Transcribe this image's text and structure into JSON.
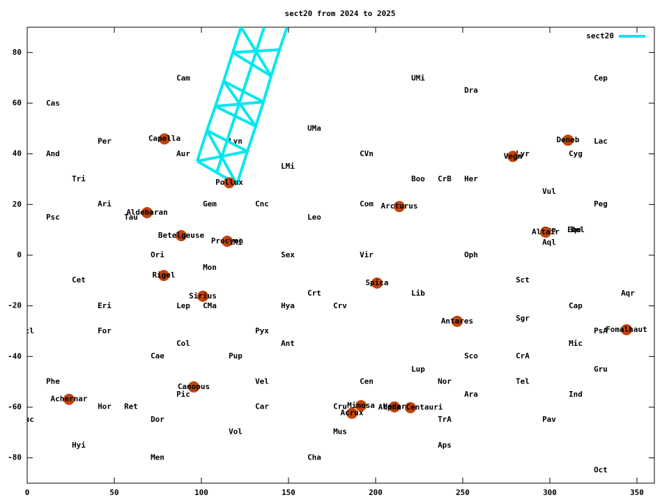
{
  "chart_data": {
    "type": "line",
    "title": "sect20 from 2024 to 2025",
    "xlim": [
      0,
      360
    ],
    "ylim": [
      -90,
      90
    ],
    "xticks": [
      0,
      50,
      100,
      150,
      200,
      250,
      300,
      350
    ],
    "yticks": [
      -80,
      -60,
      -40,
      -20,
      0,
      20,
      40,
      60,
      80
    ],
    "legend": "top-right",
    "series": [
      {
        "name": "sect20",
        "color": "#00e8ee",
        "x": [
          97.6,
          103.2,
          108,
          112.8,
          118,
          122.8,
          null,
          120.4,
          126.4,
          131.2,
          135.6,
          140,
          144.8,
          149.2,
          null,
          108.8,
          136,
          null,
          97.6,
          120.4,
          null,
          103.2,
          126.4,
          null,
          108,
          131.2,
          null,
          112.8,
          135.6,
          null,
          118,
          140,
          null,
          97.6,
          126.4,
          null,
          120.4,
          103.2,
          null,
          108,
          135.6,
          null,
          131.2,
          112.8,
          null,
          118,
          144.8,
          null,
          140,
          122.8
        ],
        "values": [
          37.1,
          49.2,
          58.8,
          68.7,
          80,
          90,
          null,
          28,
          41,
          50.9,
          60.5,
          70.7,
          81.1,
          90,
          null,
          32.7,
          90,
          null,
          37.1,
          28,
          null,
          49.2,
          41,
          null,
          58.8,
          50.9,
          null,
          68.7,
          60.5,
          null,
          80,
          70.7,
          null,
          37.1,
          41,
          null,
          28,
          49.2,
          null,
          58.8,
          60.5,
          null,
          50.9,
          68.7,
          null,
          80,
          81.1,
          null,
          70.7,
          90
        ]
      }
    ],
    "star_color": "#c0440e",
    "stars": [
      {
        "name": "Capella",
        "x": 78.8,
        "y": 45.9
      },
      {
        "name": "Aldebaran",
        "x": 68.8,
        "y": 16.8
      },
      {
        "name": "Betelgeuse",
        "x": 88.4,
        "y": 7.7
      },
      {
        "name": "Rigel",
        "x": 78.4,
        "y": -8.0
      },
      {
        "name": "Sirius",
        "x": 100.8,
        "y": -16.2
      },
      {
        "name": "Procyon",
        "x": 114.8,
        "y": 5.5
      },
      {
        "name": "Pollux",
        "x": 116,
        "y": 28.6
      },
      {
        "name": "Canopus",
        "x": 95.6,
        "y": -52.0
      },
      {
        "name": "Achernar",
        "x": 24,
        "y": -56.9
      },
      {
        "name": "Mimosa",
        "x": 191.6,
        "y": -59.4
      },
      {
        "name": "Acrux",
        "x": 186.4,
        "y": -62.4
      },
      {
        "name": "Hadar",
        "x": 210.8,
        "y": -59.9
      },
      {
        "name": "Alpha Centauri",
        "x": 220,
        "y": -60.2
      },
      {
        "name": "Spica",
        "x": 200.8,
        "y": -11.0
      },
      {
        "name": "Arcturus",
        "x": 213.6,
        "y": 19.2
      },
      {
        "name": "Antares",
        "x": 246.8,
        "y": -26.1
      },
      {
        "name": "Vega",
        "x": 278.8,
        "y": 39.0
      },
      {
        "name": "Deneb",
        "x": 310.4,
        "y": 45.4
      },
      {
        "name": "Altair",
        "x": 297.6,
        "y": 9.1
      },
      {
        "name": "Fomalhaut",
        "x": 344,
        "y": -29.4
      }
    ],
    "constellations": [
      {
        "name": "Cam",
        "x": 89.6,
        "y": 69.8
      },
      {
        "name": "UMi",
        "x": 224.4,
        "y": 69.8
      },
      {
        "name": "Cep",
        "x": 329.2,
        "y": 69.8
      },
      {
        "name": "Dra",
        "x": 254.8,
        "y": 64.9
      },
      {
        "name": "Cas",
        "x": 14.8,
        "y": 59.9
      },
      {
        "name": "UMa",
        "x": 164.8,
        "y": 50.0
      },
      {
        "name": "Per",
        "x": 44.4,
        "y": 44.8
      },
      {
        "name": "Lac",
        "x": 329.2,
        "y": 44.8
      },
      {
        "name": "Lyn",
        "x": 119.6,
        "y": 44.8
      },
      {
        "name": "And",
        "x": 14.8,
        "y": 39.9
      },
      {
        "name": "Aur",
        "x": 89.6,
        "y": 39.9
      },
      {
        "name": "CVn",
        "x": 194.8,
        "y": 39.9
      },
      {
        "name": "Lyr",
        "x": 284.4,
        "y": 39.9
      },
      {
        "name": "Cyg",
        "x": 314.8,
        "y": 39.9
      },
      {
        "name": "LMi",
        "x": 149.6,
        "y": 34.9
      },
      {
        "name": "Tri",
        "x": 29.6,
        "y": 30.0
      },
      {
        "name": "Boo",
        "x": 224.4,
        "y": 30.0
      },
      {
        "name": "CrB",
        "x": 239.6,
        "y": 30.0
      },
      {
        "name": "Her",
        "x": 254.8,
        "y": 30.0
      },
      {
        "name": "Vul",
        "x": 299.6,
        "y": 25.0
      },
      {
        "name": "Ari",
        "x": 44.4,
        "y": 20.1
      },
      {
        "name": "Gem",
        "x": 104.8,
        "y": 20.1
      },
      {
        "name": "Cnc",
        "x": 134.8,
        "y": 20.1
      },
      {
        "name": "Com",
        "x": 194.8,
        "y": 20.1
      },
      {
        "name": "Peg",
        "x": 329.2,
        "y": 20.1
      },
      {
        "name": "Psc",
        "x": 14.8,
        "y": 14.8
      },
      {
        "name": "Tau",
        "x": 59.6,
        "y": 14.8
      },
      {
        "name": "Leo",
        "x": 164.8,
        "y": 14.8
      },
      {
        "name": "Sge",
        "x": 299.6,
        "y": 9.9
      },
      {
        "name": "Equ",
        "x": 314.0,
        "y": 9.9
      },
      {
        "name": "Del",
        "x": 316.0,
        "y": 9.9
      },
      {
        "name": "CMi",
        "x": 119.6,
        "y": 4.9
      },
      {
        "name": "Aql",
        "x": 299.6,
        "y": 4.9
      },
      {
        "name": "Ori",
        "x": 74.8,
        "y": 0
      },
      {
        "name": "Sex",
        "x": 149.6,
        "y": 0
      },
      {
        "name": "Vir",
        "x": 194.8,
        "y": 0
      },
      {
        "name": "Oph",
        "x": 254.8,
        "y": 0
      },
      {
        "name": "Mon",
        "x": 104.8,
        "y": -4.9
      },
      {
        "name": "Cet",
        "x": 29.6,
        "y": -9.9
      },
      {
        "name": "Sct",
        "x": 284.4,
        "y": -9.9
      },
      {
        "name": "Crt",
        "x": 164.8,
        "y": -15.1
      },
      {
        "name": "Lib",
        "x": 224.4,
        "y": -15.1
      },
      {
        "name": "Aqr",
        "x": 344.8,
        "y": -15.1
      },
      {
        "name": "Eri",
        "x": 44.4,
        "y": -20.1
      },
      {
        "name": "Lep",
        "x": 89.6,
        "y": -20.1
      },
      {
        "name": "CMa",
        "x": 104.8,
        "y": -20.1
      },
      {
        "name": "Hya",
        "x": 149.6,
        "y": -20.1
      },
      {
        "name": "Crv",
        "x": 179.6,
        "y": -20.1
      },
      {
        "name": "Cap",
        "x": 314.8,
        "y": -20.1
      },
      {
        "name": "Sgr",
        "x": 284.4,
        "y": -25.0
      },
      {
        "name": "Scl",
        "x": 0,
        "y": -30.0
      },
      {
        "name": "For",
        "x": 44.4,
        "y": -30.0
      },
      {
        "name": "Pyx",
        "x": 134.8,
        "y": -30.0
      },
      {
        "name": "PsA",
        "x": 329.2,
        "y": -30.0
      },
      {
        "name": "Col",
        "x": 89.6,
        "y": -34.9
      },
      {
        "name": "Ant",
        "x": 149.6,
        "y": -34.9
      },
      {
        "name": "Mic",
        "x": 314.8,
        "y": -34.9
      },
      {
        "name": "Cae",
        "x": 74.8,
        "y": -39.9
      },
      {
        "name": "Pup",
        "x": 119.6,
        "y": -39.9
      },
      {
        "name": "Sco",
        "x": 254.8,
        "y": -39.9
      },
      {
        "name": "CrA",
        "x": 284.4,
        "y": -39.9
      },
      {
        "name": "Lup",
        "x": 224.4,
        "y": -45.1
      },
      {
        "name": "Gru",
        "x": 329.2,
        "y": -45.1
      },
      {
        "name": "Phe",
        "x": 14.8,
        "y": -50.0
      },
      {
        "name": "Vel",
        "x": 134.8,
        "y": -50.0
      },
      {
        "name": "Cen",
        "x": 194.8,
        "y": -50.0
      },
      {
        "name": "Nor",
        "x": 239.6,
        "y": -50.0
      },
      {
        "name": "Tel",
        "x": 284.4,
        "y": -50.0
      },
      {
        "name": "Pic",
        "x": 89.6,
        "y": -55.0
      },
      {
        "name": "Ara",
        "x": 254.8,
        "y": -55.0
      },
      {
        "name": "Ind",
        "x": 314.8,
        "y": -55.0
      },
      {
        "name": "Hor",
        "x": 44.4,
        "y": -59.9
      },
      {
        "name": "Ret",
        "x": 59.6,
        "y": -59.9
      },
      {
        "name": "Car",
        "x": 134.8,
        "y": -59.9
      },
      {
        "name": "Cru",
        "x": 179.6,
        "y": -59.9
      },
      {
        "name": "Tuc",
        "x": 0,
        "y": -64.9
      },
      {
        "name": "Dor",
        "x": 74.8,
        "y": -64.9
      },
      {
        "name": "TrA",
        "x": 239.6,
        "y": -64.9
      },
      {
        "name": "Pav",
        "x": 299.6,
        "y": -64.9
      },
      {
        "name": "Vol",
        "x": 119.6,
        "y": -69.8
      },
      {
        "name": "Mus",
        "x": 179.6,
        "y": -69.8
      },
      {
        "name": "Hyi",
        "x": 29.6,
        "y": -75.1
      },
      {
        "name": "Aps",
        "x": 239.6,
        "y": -75.1
      },
      {
        "name": "Men",
        "x": 74.8,
        "y": -80.0
      },
      {
        "name": "Cha",
        "x": 164.8,
        "y": -80.0
      },
      {
        "name": "Oct",
        "x": 329.2,
        "y": -84.9
      }
    ]
  }
}
